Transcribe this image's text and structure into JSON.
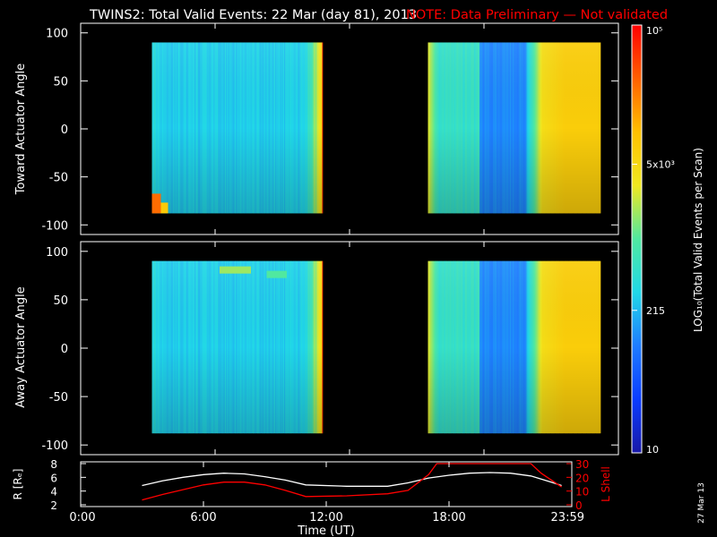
{
  "header": {
    "title": "TWINS2: Total Valid Events: 22 Mar (day  81), 2013",
    "note": "NOTE: Data Preliminary — Not validated",
    "note_color": "#ff0000"
  },
  "colorbar": {
    "label": "LOG₁₀(Total Valid Events per Scan)",
    "tick_labels": [
      "10",
      "215",
      "5x10³",
      "10⁵"
    ],
    "tick_values": [
      10,
      215,
      5000,
      100000
    ],
    "range": [
      10,
      100000
    ],
    "scale": "log",
    "colors": [
      "#1818a8",
      "#0a3cff",
      "#1e7cff",
      "#20d8e8",
      "#50e8a0",
      "#f0e820",
      "#ffc000",
      "#ff6000",
      "#ff0000"
    ]
  },
  "date_stamp": "27 Mar 13",
  "chart_data": [
    {
      "type": "heatmap",
      "ylabel": "Toward Actuator Angle",
      "ylim": [
        -110,
        110
      ],
      "yticks": [
        -100,
        -50,
        0,
        50,
        100
      ],
      "xlim": [
        0,
        24
      ],
      "valid_intervals_hours": [
        [
          3.18,
          10.8
        ],
        [
          15.5,
          23.2
        ]
      ],
      "angle_range_deg": [
        -88,
        90
      ]
    },
    {
      "type": "heatmap",
      "ylabel": "Away Actuator Angle",
      "ylim": [
        -110,
        110
      ],
      "yticks": [
        -100,
        -50,
        0,
        50,
        100
      ],
      "xlim": [
        0,
        24
      ],
      "valid_intervals_hours": [
        [
          3.18,
          10.8
        ],
        [
          15.5,
          23.2
        ]
      ],
      "angle_range_deg": [
        -88,
        90
      ]
    },
    {
      "type": "line",
      "xlabel": "Time (UT)",
      "xlim": [
        0,
        24
      ],
      "x_tick_labels": [
        "0:00",
        "6:00",
        "12:00",
        "18:00",
        "23:59"
      ],
      "x_tick_values": [
        0,
        6,
        12,
        18,
        24
      ],
      "y_left": {
        "label": "R [Rₑ]",
        "ticks": [
          2,
          4,
          6,
          8
        ],
        "range": [
          2,
          8
        ]
      },
      "y_right": {
        "label": "L Shell",
        "ticks": [
          0,
          10,
          20,
          30
        ],
        "range": [
          0,
          30
        ],
        "color": "#ff0000"
      },
      "series": [
        {
          "axis": "left",
          "color": "#ffffff",
          "x": [
            3.0,
            4.0,
            5.0,
            6.0,
            7.0,
            8.0,
            9.0,
            10.0,
            11.0,
            13.0,
            15.0,
            16.0,
            17.0,
            18.0,
            19.0,
            20.0,
            21.0,
            22.0,
            23.0,
            23.5
          ],
          "y": [
            4.8,
            5.5,
            6.0,
            6.4,
            6.6,
            6.5,
            6.1,
            5.6,
            4.9,
            4.7,
            4.7,
            5.2,
            5.9,
            6.3,
            6.6,
            6.7,
            6.6,
            6.2,
            5.3,
            4.8
          ]
        },
        {
          "axis": "right",
          "color": "#ff0000",
          "x": [
            3.0,
            4.0,
            5.0,
            6.0,
            7.0,
            8.0,
            9.0,
            10.0,
            11.0,
            13.0,
            15.0,
            16.0,
            17.0,
            17.4,
            22.0,
            22.5,
            23.0,
            23.5
          ],
          "y": [
            3.5,
            7.5,
            11.0,
            14.5,
            16.5,
            16.5,
            14.5,
            10.5,
            6.0,
            6.5,
            8.0,
            10.5,
            22.0,
            30.0,
            30.0,
            23.0,
            18.0,
            13.0
          ]
        }
      ]
    }
  ]
}
